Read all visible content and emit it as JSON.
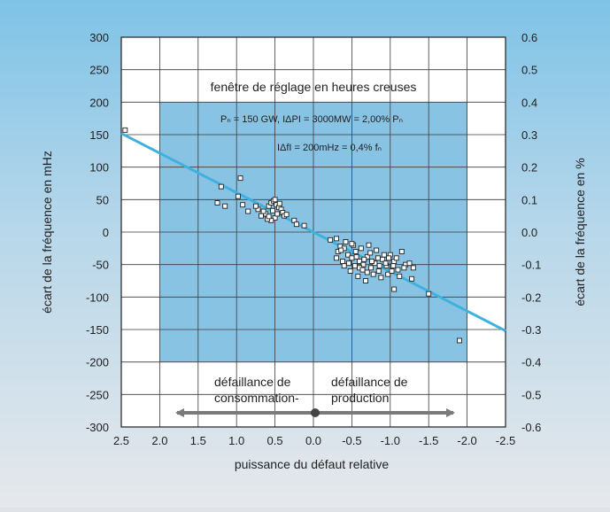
{
  "chart_data": {
    "type": "scatter",
    "xlabel": "puissance du défaut relative",
    "ylabel": "écart de la fréquence en mHz",
    "ylabel_right": "écart de la fréquence en %",
    "xlim": [
      2.5,
      -2.5
    ],
    "ylim": [
      -300,
      300
    ],
    "ylim_right": [
      -0.6,
      0.6
    ],
    "x_ticks": [
      "2.5",
      "2.0",
      "1.5",
      "1.0",
      "0.5",
      "0.0",
      "-0.5",
      "-1.0",
      "-1.5",
      "-2.0",
      "-2.5"
    ],
    "y_ticks": [
      "300",
      "250",
      "200",
      "150",
      "100",
      "50",
      "0",
      "-50",
      "-100",
      "-150",
      "-200",
      "-250",
      "-300"
    ],
    "y_ticks_right": [
      "0.6",
      "0.5",
      "0.4",
      "0.3",
      "0.2",
      "0.1",
      "0.0",
      "-0.1",
      "-0.2",
      "-0.3",
      "-0.4",
      "-0.5",
      "-0.6"
    ],
    "grid": true,
    "window": {
      "title": "fenêtre de réglage en heures creuses",
      "x": [
        2.0,
        -2.0
      ],
      "y": [
        -200,
        200
      ],
      "note1": "Pₙ = 150 GW, IΔPI = 3000MW = 2,00% Pₙ",
      "note2": "IΔfI = 200mHz = 0,4% fₙ"
    },
    "regression_line": {
      "x": [
        2.5,
        -2.5
      ],
      "y": [
        152,
        -152
      ]
    },
    "arrow_left_label": [
      "défaillance de",
      "consommation-"
    ],
    "arrow_right_label": [
      "défaillance de",
      "production"
    ],
    "points": [
      [
        2.45,
        157
      ],
      [
        1.2,
        70
      ],
      [
        1.25,
        45
      ],
      [
        1.15,
        40
      ],
      [
        0.95,
        83
      ],
      [
        0.98,
        55
      ],
      [
        0.92,
        42
      ],
      [
        0.85,
        32
      ],
      [
        0.72,
        35
      ],
      [
        0.68,
        25
      ],
      [
        0.62,
        28
      ],
      [
        0.58,
        40
      ],
      [
        0.55,
        45
      ],
      [
        0.52,
        48
      ],
      [
        0.5,
        50
      ],
      [
        0.48,
        42
      ],
      [
        0.45,
        38
      ],
      [
        0.42,
        35
      ],
      [
        0.4,
        30
      ],
      [
        0.38,
        25
      ],
      [
        0.5,
        22
      ],
      [
        0.55,
        18
      ],
      [
        0.6,
        20
      ],
      [
        0.65,
        32
      ],
      [
        0.47,
        28
      ],
      [
        0.53,
        33
      ],
      [
        0.44,
        44
      ],
      [
        0.35,
        27
      ],
      [
        0.75,
        40
      ],
      [
        0.58,
        24
      ],
      [
        0.25,
        18
      ],
      [
        0.22,
        12
      ],
      [
        0.12,
        10
      ],
      [
        -0.22,
        -12
      ],
      [
        -0.3,
        -10
      ],
      [
        -0.35,
        -22
      ],
      [
        -0.32,
        -30
      ],
      [
        -0.4,
        -25
      ],
      [
        -0.45,
        -35
      ],
      [
        -0.5,
        -40
      ],
      [
        -0.55,
        -30
      ],
      [
        -0.6,
        -45
      ],
      [
        -0.65,
        -50
      ],
      [
        -0.7,
        -38
      ],
      [
        -0.75,
        -55
      ],
      [
        -0.8,
        -48
      ],
      [
        -0.85,
        -60
      ],
      [
        -0.9,
        -42
      ],
      [
        -0.95,
        -52
      ],
      [
        -1.0,
        -35
      ],
      [
        -1.05,
        -45
      ],
      [
        -1.1,
        -58
      ],
      [
        -1.15,
        -30
      ],
      [
        -1.2,
        -50
      ],
      [
        -0.38,
        -45
      ],
      [
        -0.42,
        -15
      ],
      [
        -0.48,
        -60
      ],
      [
        -0.52,
        -20
      ],
      [
        -0.58,
        -68
      ],
      [
        -0.62,
        -25
      ],
      [
        -0.68,
        -75
      ],
      [
        -0.72,
        -20
      ],
      [
        -0.78,
        -65
      ],
      [
        -0.82,
        -28
      ],
      [
        -0.88,
        -70
      ],
      [
        -0.92,
        -35
      ],
      [
        -0.97,
        -65
      ],
      [
        -1.02,
        -60
      ],
      [
        -1.08,
        -40
      ],
      [
        -1.12,
        -68
      ],
      [
        -1.18,
        -55
      ],
      [
        -0.3,
        -40
      ],
      [
        -0.46,
        -48
      ],
      [
        -0.54,
        -52
      ],
      [
        -0.66,
        -42
      ],
      [
        -0.74,
        -32
      ],
      [
        -0.84,
        -40
      ],
      [
        -0.94,
        -48
      ],
      [
        -1.04,
        -52
      ],
      [
        -1.25,
        -48
      ],
      [
        -1.3,
        -55
      ],
      [
        -1.28,
        -72
      ],
      [
        -1.05,
        -88
      ],
      [
        -0.6,
        -55
      ],
      [
        -0.7,
        -62
      ],
      [
        -0.36,
        -28
      ],
      [
        -0.4,
        -52
      ],
      [
        -0.5,
        -18
      ],
      [
        -0.56,
        -38
      ],
      [
        -0.64,
        -58
      ],
      [
        -0.76,
        -45
      ],
      [
        -0.86,
        -52
      ],
      [
        -0.98,
        -40
      ],
      [
        -1.5,
        -95
      ],
      [
        -1.9,
        -167
      ]
    ]
  }
}
